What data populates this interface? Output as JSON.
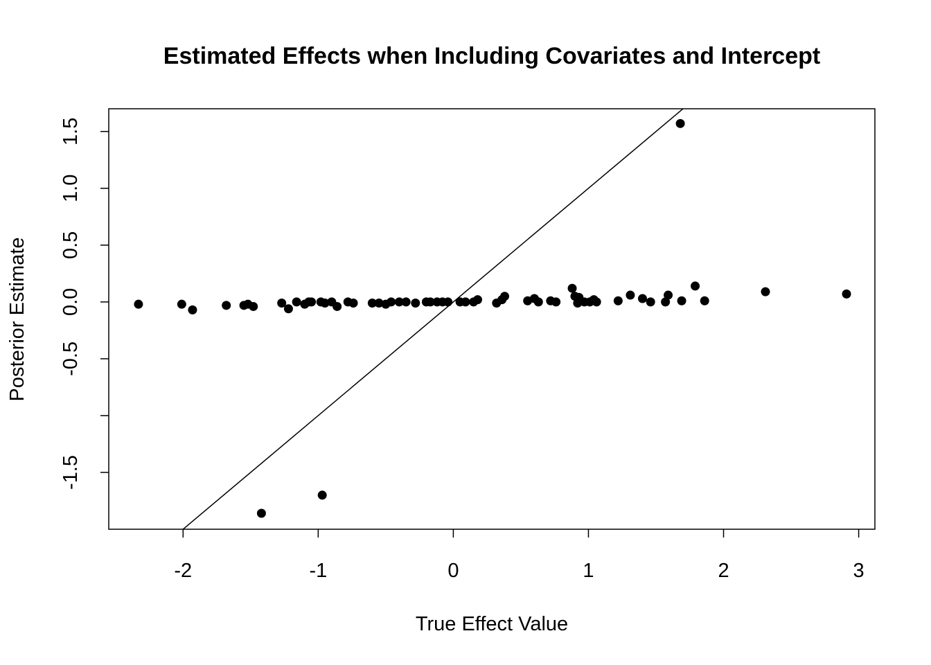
{
  "chart_data": {
    "type": "scatter",
    "title": "Estimated Effects when Including Covariates and Intercept",
    "xlabel": "True Effect Value",
    "ylabel": "Posterior Estimate",
    "xlim": [
      -2.55,
      3.12
    ],
    "ylim": [
      -2.0,
      1.7
    ],
    "x_ticks": [
      -2,
      -1,
      0,
      1,
      2,
      3
    ],
    "x_tick_labels": [
      "-2",
      "-1",
      "0",
      "1",
      "2",
      "3"
    ],
    "y_ticks": [
      -1.5,
      -1.0,
      -0.5,
      0.0,
      0.5,
      1.0,
      1.5
    ],
    "y_tick_labels": [
      "-1.5",
      "",
      "-0.5",
      "0.0",
      "0.5",
      "1.0",
      "1.5"
    ],
    "grid": false,
    "reference_line": {
      "slope": 1,
      "intercept": 0
    },
    "series": [
      {
        "color": "#000000",
        "points": [
          [
            -2.33,
            -0.02
          ],
          [
            -2.01,
            -0.02
          ],
          [
            -1.93,
            -0.07
          ],
          [
            -1.68,
            -0.03
          ],
          [
            -1.55,
            -0.03
          ],
          [
            -1.52,
            -0.02
          ],
          [
            -1.48,
            -0.04
          ],
          [
            -1.27,
            -0.01
          ],
          [
            -1.22,
            -0.06
          ],
          [
            -1.16,
            0.0
          ],
          [
            -1.1,
            -0.02
          ],
          [
            -1.07,
            0.0
          ],
          [
            -1.05,
            0.0
          ],
          [
            -0.98,
            0.0
          ],
          [
            -0.95,
            -0.01
          ],
          [
            -0.9,
            0.0
          ],
          [
            -0.86,
            -0.04
          ],
          [
            -0.78,
            0.0
          ],
          [
            -0.74,
            -0.01
          ],
          [
            -0.6,
            -0.01
          ],
          [
            -0.55,
            -0.01
          ],
          [
            -0.5,
            -0.02
          ],
          [
            -0.46,
            0.0
          ],
          [
            -0.4,
            0.0
          ],
          [
            -0.35,
            0.0
          ],
          [
            -0.28,
            -0.01
          ],
          [
            -0.2,
            0.0
          ],
          [
            -0.17,
            0.0
          ],
          [
            -0.12,
            0.0
          ],
          [
            -0.08,
            0.0
          ],
          [
            -0.04,
            0.0
          ],
          [
            0.05,
            0.0
          ],
          [
            0.09,
            0.0
          ],
          [
            0.15,
            0.0
          ],
          [
            0.18,
            0.02
          ],
          [
            0.32,
            -0.01
          ],
          [
            0.36,
            0.02
          ],
          [
            0.38,
            0.05
          ],
          [
            0.55,
            0.01
          ],
          [
            0.6,
            0.03
          ],
          [
            0.63,
            0.0
          ],
          [
            0.72,
            0.01
          ],
          [
            0.76,
            0.0
          ],
          [
            0.88,
            0.12
          ],
          [
            0.9,
            0.05
          ],
          [
            0.92,
            -0.01
          ],
          [
            0.93,
            0.04
          ],
          [
            0.97,
            0.0
          ],
          [
            1.01,
            0.0
          ],
          [
            1.04,
            0.02
          ],
          [
            1.06,
            0.0
          ],
          [
            1.22,
            0.01
          ],
          [
            1.31,
            0.06
          ],
          [
            1.4,
            0.03
          ],
          [
            1.46,
            0.0
          ],
          [
            1.57,
            0.0
          ],
          [
            1.59,
            0.06
          ],
          [
            1.69,
            0.01
          ],
          [
            1.79,
            0.14
          ],
          [
            1.86,
            0.01
          ],
          [
            2.31,
            0.09
          ],
          [
            2.91,
            0.07
          ],
          [
            1.68,
            1.57
          ],
          [
            -1.42,
            -1.86
          ],
          [
            -0.97,
            -1.7
          ]
        ]
      }
    ]
  }
}
